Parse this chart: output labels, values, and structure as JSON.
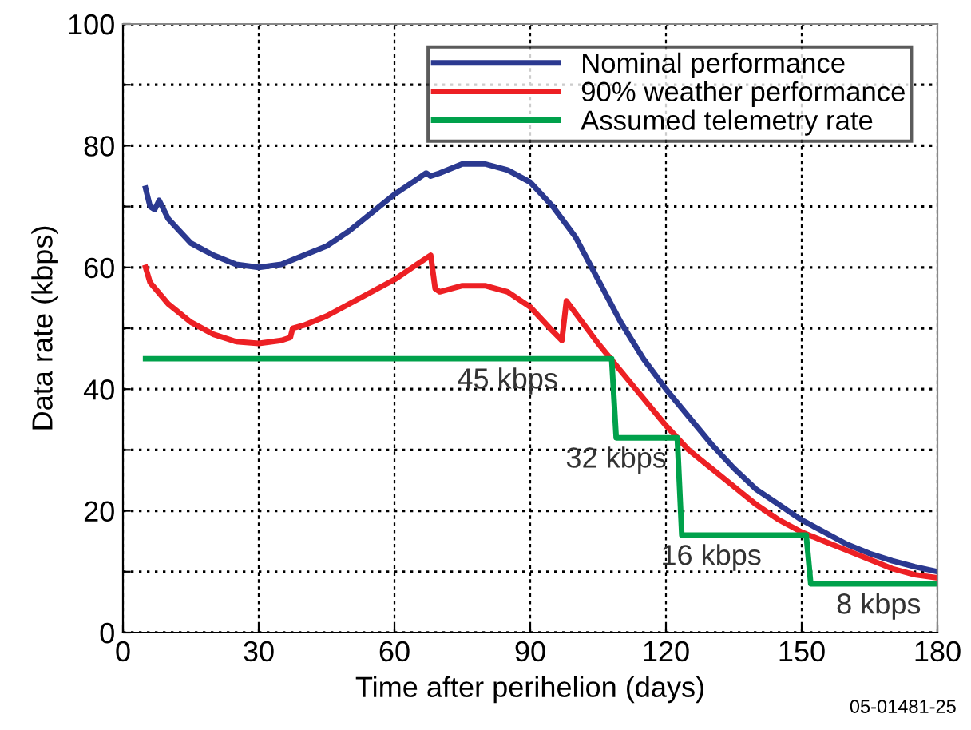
{
  "chart_data": {
    "type": "line",
    "xlabel": "Time after perihelion (days)",
    "ylabel": "Data rate (kbps)",
    "xlim": [
      0,
      180
    ],
    "xticks": [
      0,
      30,
      60,
      90,
      120,
      150,
      180
    ],
    "ylim": [
      0,
      100
    ],
    "yticks": [
      0,
      {
        "value": 10,
        "label": null
      },
      20,
      {
        "value": 30,
        "label": null
      },
      40,
      {
        "value": 50,
        "label": null
      },
      60,
      {
        "value": 70,
        "label": null
      },
      80,
      {
        "value": 90,
        "label": null
      },
      100
    ],
    "grid": true,
    "legend": "top right",
    "line_style": "solid",
    "marker": "none",
    "series": [
      {
        "name": "Nominal performance",
        "color": "#2b3990",
        "x": [
          5,
          6,
          7,
          8,
          10,
          15,
          20,
          25,
          30,
          35,
          40,
          45,
          50,
          55,
          60,
          65,
          67,
          68,
          70,
          75,
          80,
          85,
          90,
          95,
          100,
          105,
          110,
          115,
          120,
          125,
          130,
          135,
          140,
          145,
          150,
          155,
          160,
          165,
          170,
          175,
          180
        ],
        "values": [
          73,
          70,
          69.5,
          71,
          68,
          64,
          62,
          60.5,
          60,
          60.5,
          62,
          63.5,
          66,
          69,
          72,
          74.5,
          75.5,
          75,
          75.5,
          77,
          77,
          76,
          74,
          70,
          65,
          58,
          51,
          45,
          40,
          35.5,
          31,
          27,
          23.5,
          21,
          18.5,
          16.5,
          14.5,
          13,
          11.8,
          10.8,
          10
        ]
      },
      {
        "name": "90% weather performance",
        "color": "#ed2024",
        "x": [
          5,
          6,
          10,
          15,
          20,
          25,
          30,
          35,
          37,
          37.5,
          40,
          45,
          50,
          55,
          60,
          65,
          68,
          69,
          70,
          75,
          80,
          85,
          90,
          95,
          97,
          98,
          100,
          105,
          110,
          115,
          120,
          125,
          130,
          135,
          140,
          145,
          150,
          155,
          160,
          165,
          170,
          175,
          180
        ],
        "values": [
          60,
          57.5,
          54,
          51,
          49,
          47.8,
          47.5,
          48,
          48.5,
          50,
          50.5,
          52,
          54,
          56,
          58,
          60.5,
          62,
          56.5,
          56,
          57,
          57,
          56,
          53.5,
          49.5,
          48,
          54.5,
          52.5,
          47.5,
          43,
          38.5,
          34,
          30,
          27,
          24,
          21,
          18.5,
          16.5,
          15,
          13.5,
          12,
          10.5,
          9.5,
          9
        ]
      },
      {
        "name": "Assumed telemetry rate",
        "color": "#00a14b",
        "x": [
          5,
          108,
          109,
          122.5,
          123.5,
          151,
          152,
          180
        ],
        "values": [
          45,
          45,
          32,
          32,
          16,
          16,
          8,
          8
        ]
      }
    ],
    "annotations": [
      {
        "text": "45 kbps",
        "x": 85,
        "y": 45
      },
      {
        "text": "32 kbps",
        "x": 109,
        "y": 32
      },
      {
        "text": "16 kbps",
        "x": 130,
        "y": 16
      },
      {
        "text": "8 kbps",
        "x": 167,
        "y": 8
      },
      "05-01481-25"
    ]
  }
}
